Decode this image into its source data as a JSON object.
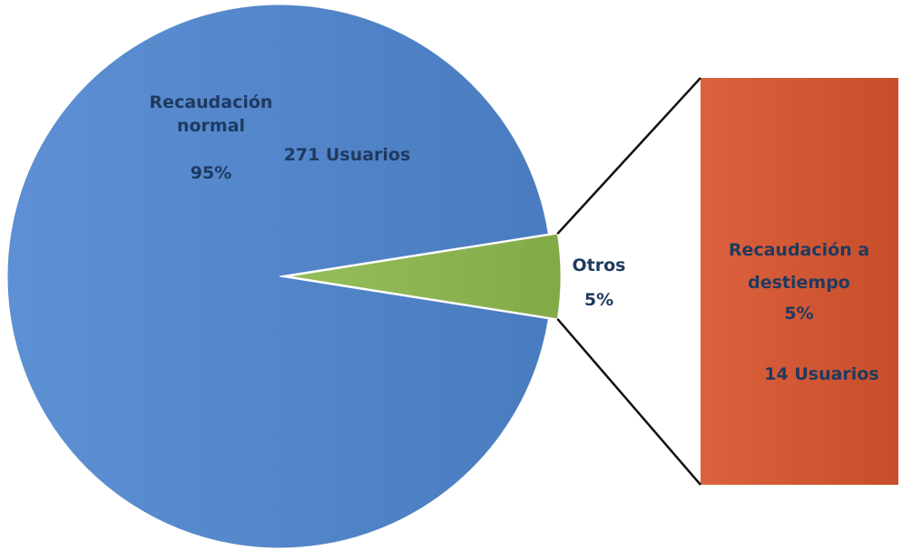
{
  "chart_data": {
    "type": "pie-of-bar",
    "categories": [
      "Recaudación normal",
      "Otros"
    ],
    "values": [
      95,
      5
    ],
    "value_labels": [
      "95%",
      "5%"
    ],
    "colors": [
      "#4f86d0",
      "#8db94e"
    ],
    "bar": {
      "categories": [
        "Recaudación a destiempo"
      ],
      "values": [
        5
      ],
      "value_labels": [
        "5%"
      ],
      "colors": [
        "#d9542e"
      ]
    },
    "annotations": [
      "271 Usuarios",
      "14 Usuarios"
    ]
  }
}
